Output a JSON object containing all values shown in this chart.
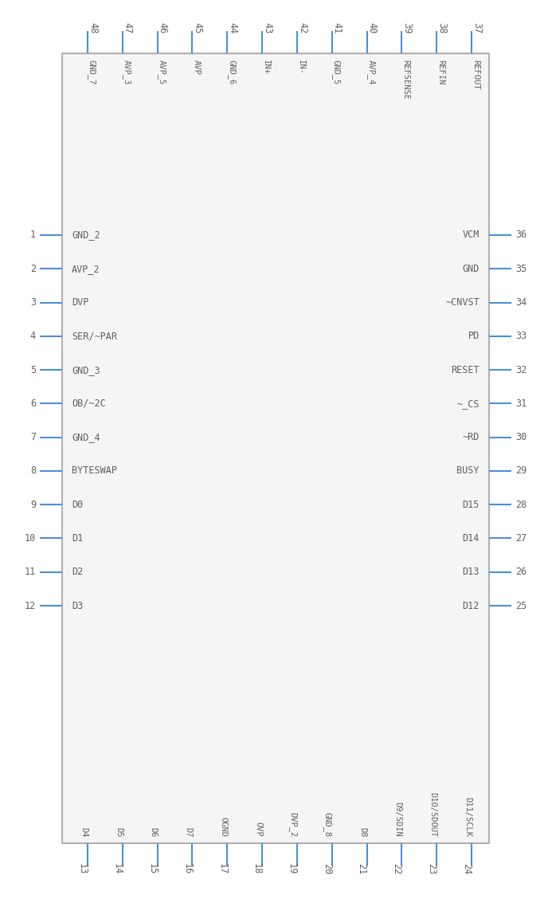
{
  "bg_color": "#ffffff",
  "box_color": "#b0b0b0",
  "box_fill": "#f5f5f5",
  "pin_color": "#4a90d9",
  "text_color": "#606060",
  "num_color": "#606060",
  "left_pins": [
    {
      "num": "1",
      "name": "GND_2"
    },
    {
      "num": "2",
      "name": "AVP_2"
    },
    {
      "num": "3",
      "name": "DVP"
    },
    {
      "num": "4",
      "name": "SER/~PAR"
    },
    {
      "num": "5",
      "name": "GND_3"
    },
    {
      "num": "6",
      "name": "OB/~2C"
    },
    {
      "num": "7",
      "name": "GND_4"
    },
    {
      "num": "8",
      "name": "BYTESWAP"
    },
    {
      "num": "9",
      "name": "D0"
    },
    {
      "num": "10",
      "name": "D1"
    },
    {
      "num": "11",
      "name": "D2"
    },
    {
      "num": "12",
      "name": "D3"
    }
  ],
  "right_pins": [
    {
      "num": "36",
      "name": "VCM"
    },
    {
      "num": "35",
      "name": "GND"
    },
    {
      "num": "34",
      "name": "~CNVST"
    },
    {
      "num": "33",
      "name": "PD"
    },
    {
      "num": "32",
      "name": "RESET"
    },
    {
      "num": "31",
      "name": "~_CS"
    },
    {
      "num": "30",
      "name": "~RD"
    },
    {
      "num": "29",
      "name": "BUSY"
    },
    {
      "num": "28",
      "name": "D15"
    },
    {
      "num": "27",
      "name": "D14"
    },
    {
      "num": "26",
      "name": "D13"
    },
    {
      "num": "25",
      "name": "D12"
    }
  ],
  "top_pins": [
    {
      "num": "48",
      "name": "GND_7"
    },
    {
      "num": "47",
      "name": "AVP_3"
    },
    {
      "num": "46",
      "name": "AVP_5"
    },
    {
      "num": "45",
      "name": "AVP"
    },
    {
      "num": "44",
      "name": "GND_6"
    },
    {
      "num": "43",
      "name": "IN+"
    },
    {
      "num": "42",
      "name": "IN-"
    },
    {
      "num": "41",
      "name": "GND_5"
    },
    {
      "num": "40",
      "name": "AVP_4"
    },
    {
      "num": "39",
      "name": "REFSENSE"
    },
    {
      "num": "38",
      "name": "REFIN"
    },
    {
      "num": "37",
      "name": "REFOUT"
    }
  ],
  "bottom_pins": [
    {
      "num": "13",
      "name": "D4"
    },
    {
      "num": "14",
      "name": "D5"
    },
    {
      "num": "15",
      "name": "D6"
    },
    {
      "num": "16",
      "name": "D7"
    },
    {
      "num": "17",
      "name": "OGND"
    },
    {
      "num": "18",
      "name": "OVP"
    },
    {
      "num": "19",
      "name": "DVP_2"
    },
    {
      "num": "20",
      "name": "GND_8"
    },
    {
      "num": "21",
      "name": "D8"
    },
    {
      "num": "22",
      "name": "D9/SDIN"
    },
    {
      "num": "23",
      "name": "D10/SDOUT"
    },
    {
      "num": "24",
      "name": "D11/SCLK"
    }
  ]
}
